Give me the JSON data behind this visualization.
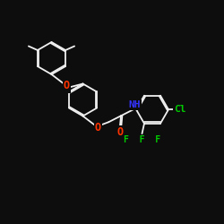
{
  "background_color": "#0d0d0d",
  "bond_color": "#f0f0f0",
  "atom_colors": {
    "O": "#ff3300",
    "N": "#3333ff",
    "Cl": "#00cc00",
    "F": "#00cc00",
    "H": "#f0f0f0"
  },
  "font_size": 7.5,
  "line_width": 1.3,
  "figsize": [
    2.5,
    2.5
  ],
  "dpi": 100
}
